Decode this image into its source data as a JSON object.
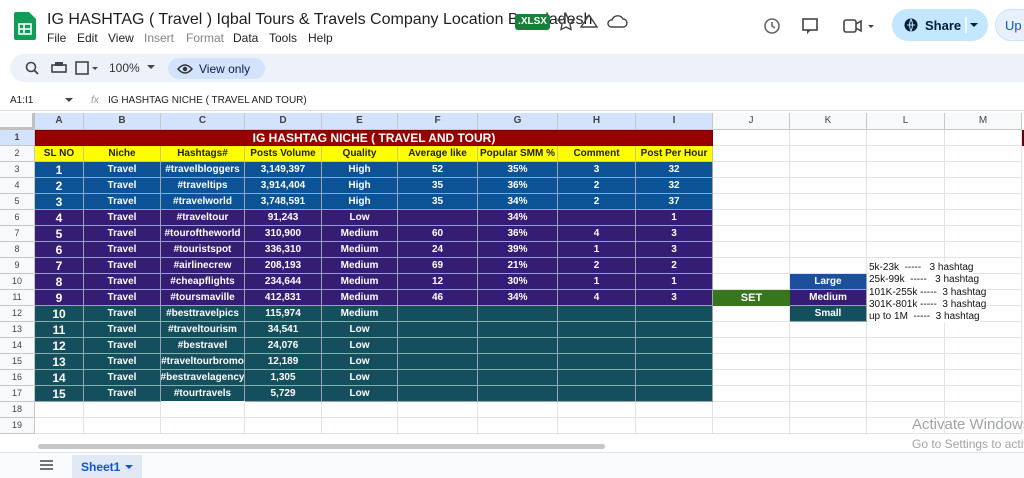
{
  "header": {
    "title": "IG HASHTAG ( Travel ) Iqbal Tours & Travels Company Location Bangladesh",
    "badge": ".XLSX",
    "menu": [
      "File",
      "Edit",
      "View",
      "Insert",
      "Format",
      "Data",
      "Tools",
      "Help"
    ],
    "share": "Share",
    "upgrade": "Up"
  },
  "toolbar": {
    "zoom": "100%",
    "mode": "View only"
  },
  "formula_bar": {
    "cell_ref": "A1:I1",
    "fx": "fx",
    "content": "IG HASHTAG NICHE ( TRAVEL AND TOUR)"
  },
  "grid": {
    "columns": [
      "A",
      "B",
      "C",
      "D",
      "E",
      "F",
      "G",
      "H",
      "I",
      "J",
      "K",
      "L",
      "M"
    ],
    "rows": [
      1,
      2,
      3,
      4,
      5,
      6,
      7,
      8,
      9,
      10,
      11,
      12,
      13,
      14,
      15,
      16,
      17,
      18,
      19
    ]
  },
  "table": {
    "title": "IG HASHTAG NICHE ( TRAVEL AND TOUR)",
    "headers": [
      "SL NO",
      "Niche",
      "Hashtags#",
      "Posts Volume",
      "Quality",
      "Average like",
      "Popular SMM %",
      "Comment",
      "Post Per Hour"
    ],
    "rows": [
      [
        1,
        "Travel",
        "#travelbloggers",
        "3,149,397",
        "High",
        52,
        "35%",
        3,
        32
      ],
      [
        2,
        "Travel",
        "#traveltips",
        "3,914,404",
        "High",
        35,
        "36%",
        2,
        32
      ],
      [
        3,
        "Travel",
        "#travelworld",
        "3,748,591",
        "High",
        35,
        "34%",
        2,
        37
      ],
      [
        4,
        "Travel",
        "#traveltour",
        "91,243",
        "Low",
        null,
        "34%",
        null,
        1
      ],
      [
        5,
        "Travel",
        "#touroftheworld",
        "310,900",
        "Medium",
        60,
        "36%",
        4,
        3
      ],
      [
        6,
        "Travel",
        "#touristspot",
        "336,310",
        "Medium",
        24,
        "39%",
        1,
        3
      ],
      [
        7,
        "Travel",
        "#airlinecrew",
        "208,193",
        "Medium",
        69,
        "21%",
        2,
        2
      ],
      [
        8,
        "Travel",
        "#cheapflights",
        "234,644",
        "Medium",
        12,
        "30%",
        1,
        1
      ],
      [
        9,
        "Travel",
        "#toursmaville",
        "412,831",
        "Medium",
        46,
        "34%",
        4,
        3
      ],
      [
        10,
        "Travel",
        "#besttravelpics",
        "115,974",
        "Medium",
        null,
        null,
        null,
        null
      ],
      [
        11,
        "Travel",
        "#traveltourism",
        "34,541",
        "Low",
        null,
        null,
        null,
        null
      ],
      [
        12,
        "Travel",
        "#bestravel",
        "24,076",
        "Low",
        null,
        null,
        null,
        null
      ],
      [
        13,
        "Travel",
        "#traveltourbromo",
        "12,189",
        "Low",
        null,
        null,
        null,
        null
      ],
      [
        14,
        "Travel",
        "#bestravelagency",
        "1,305",
        "Low",
        null,
        null,
        null,
        null
      ],
      [
        15,
        "Travel",
        "#tourtravels",
        "5,729",
        "Low",
        null,
        null,
        null,
        null
      ]
    ]
  },
  "legend": {
    "set": "SET",
    "sizes": [
      "Large",
      "Medium",
      "Small"
    ],
    "notes": [
      "5k-23k  -----   3 hashtag",
      "25k-99k  -----   3 hashtag",
      "101K-255k -----  3 hashtag",
      "301K-801k -----  3 hashtag",
      "up to 1M  -----  3 hashtag"
    ]
  },
  "sheet_tab": "Sheet1",
  "watermark": {
    "title": "Activate Windows",
    "subtitle": "Go to Settings to activate Windows."
  }
}
